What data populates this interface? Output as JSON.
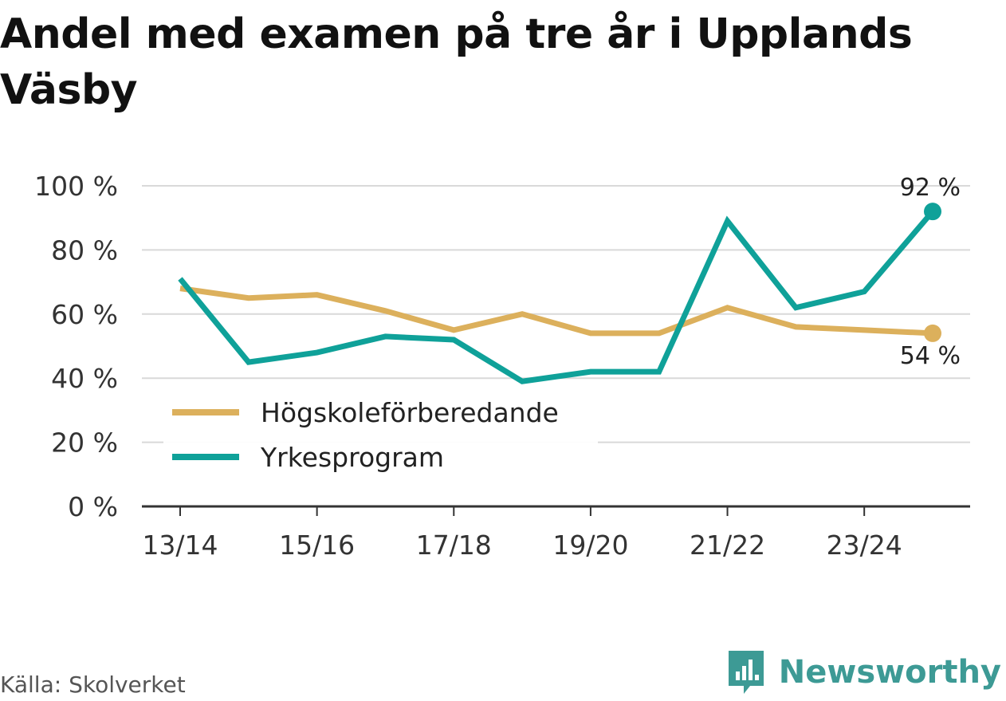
{
  "title": "Andel med examen på tre år i Upplands Väsby",
  "source": "Källa: Skolverket",
  "brand": "Newsworthy",
  "colors": {
    "hogskole": "#dcb05c",
    "yrke": "#0fa199",
    "grid": "#d9d9d9",
    "axis": "#333333",
    "text": "#333333",
    "brand": "#3d9a95"
  },
  "chart_data": {
    "type": "line",
    "x": [
      "13/14",
      "14/15",
      "15/16",
      "16/17",
      "17/18",
      "18/19",
      "19/20",
      "20/21",
      "21/22",
      "22/23",
      "23/24",
      "24/25"
    ],
    "x_tick_labels": [
      "13/14",
      "15/16",
      "17/18",
      "19/20",
      "21/22",
      "23/24"
    ],
    "y_ticks": [
      "0 %",
      "20 %",
      "40 %",
      "60 %",
      "80 %",
      "100 %"
    ],
    "ylim": [
      0,
      100
    ],
    "grid": true,
    "legend_position": "lower-left",
    "series": [
      {
        "name": "Högskoleförberedande",
        "color": "#dcb05c",
        "values": [
          68,
          65,
          66,
          61,
          55,
          60,
          54,
          54,
          62,
          56,
          55,
          54
        ],
        "end_label": "54 %"
      },
      {
        "name": "Yrkesprogram",
        "color": "#0fa199",
        "values": [
          71,
          45,
          48,
          53,
          52,
          39,
          42,
          42,
          89,
          62,
          67,
          92
        ],
        "end_label": "92 %"
      }
    ]
  }
}
